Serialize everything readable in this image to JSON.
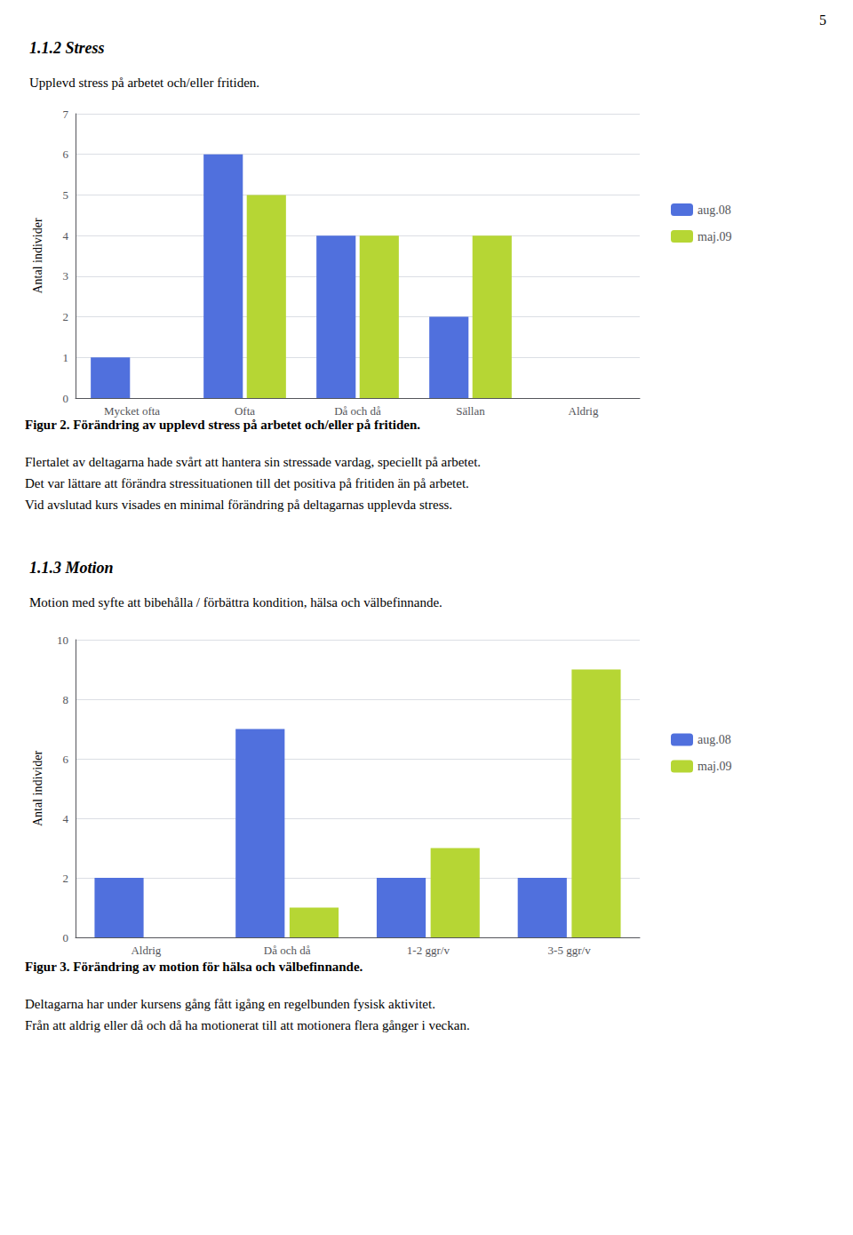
{
  "annotations": [
    "5"
  ],
  "chart_data": [
    {
      "type": "bar",
      "title": "1.1.2 Stress",
      "subtitle": "Upplevd stress på arbetet och/eller fritiden.",
      "categories": [
        "Mycket ofta",
        "Ofta",
        "Då och då",
        "Sällan",
        "Aldrig"
      ],
      "series": [
        {
          "name": "aug.08",
          "values": [
            1,
            6,
            4,
            2,
            0
          ]
        },
        {
          "name": "maj.09",
          "values": [
            0,
            5,
            4,
            4,
            0
          ]
        }
      ],
      "ylabel": "Antal individer",
      "ylim": [
        0,
        7
      ],
      "yticks": [
        0,
        1,
        2,
        3,
        4,
        5,
        6,
        7
      ],
      "grid": true,
      "legend": "right",
      "annotations": [
        "Figur 2. Förändring av upplevd stress på arbetet och/eller på fritiden.",
        "Flertalet av deltagarna hade svårt att hantera sin stressade vardag, speciellt på arbetet.",
        "Det var lättare att förändra stressituationen till det positiva på fritiden än på arbetet.",
        "Vid avslutad kurs visades en minimal förändring på deltagarnas upplevda stress."
      ]
    },
    {
      "type": "bar",
      "title": "1.1.3 Motion",
      "subtitle": "Motion med syfte att bibehålla / förbättra kondition, hälsa och välbefinnande.",
      "categories": [
        "Aldrig",
        "Då och då",
        "1-2 ggr/v",
        "3-5 ggr/v"
      ],
      "series": [
        {
          "name": "aug.08",
          "values": [
            2,
            7,
            2,
            2
          ]
        },
        {
          "name": "maj.09",
          "values": [
            0,
            1,
            3,
            9
          ]
        }
      ],
      "ylabel": "Antal individer",
      "ylim": [
        0,
        10
      ],
      "yticks": [
        0,
        2,
        4,
        6,
        8,
        10
      ],
      "grid": true,
      "legend": "right",
      "annotations": [
        "Figur 3. Förändring av motion för hälsa och välbefinnande.",
        "Deltagarna har under kursens gång fått igång en regelbunden fysisk aktivitet.",
        "Från att aldrig eller då och då ha motionerat till att motionera flera gånger i veckan."
      ]
    }
  ]
}
